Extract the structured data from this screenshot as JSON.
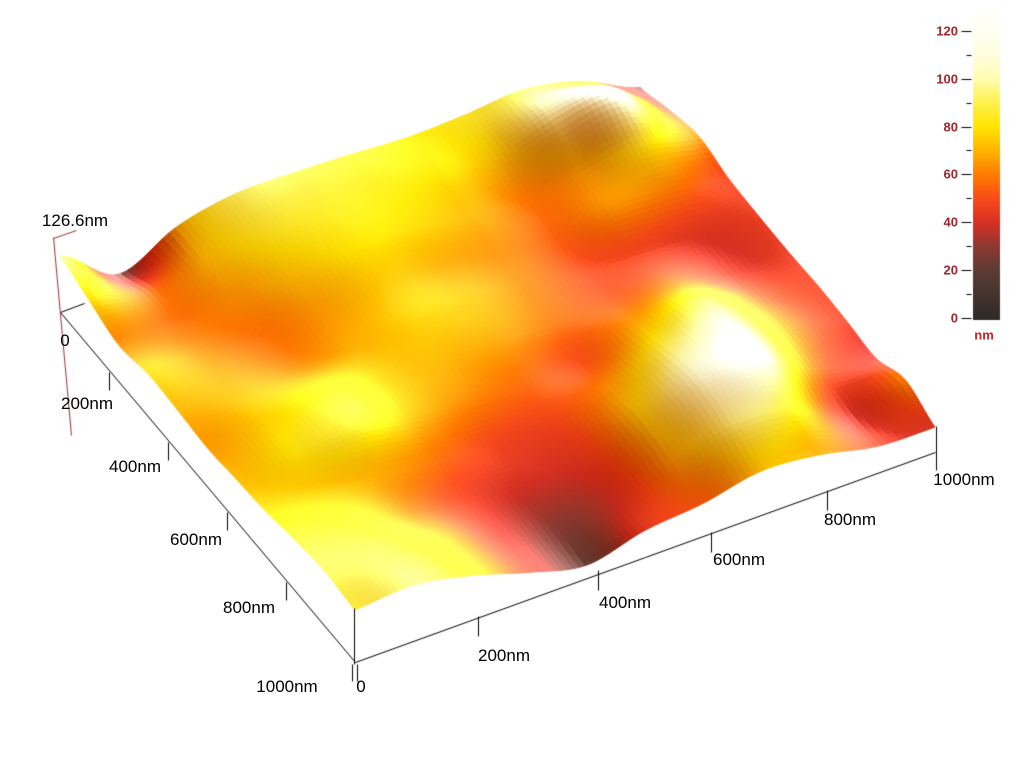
{
  "figure": {
    "background": "#ffffff",
    "z_axis": {
      "max_label": "126.6nm",
      "line_color": "#993333"
    },
    "y_axis": {
      "tick_labels": [
        "0",
        "200nm",
        "400nm",
        "600nm",
        "800nm",
        "1000nm"
      ]
    },
    "x_axis": {
      "tick_labels": [
        "0",
        "200nm",
        "400nm",
        "600nm",
        "800nm",
        "1000nm"
      ]
    },
    "colorbar": {
      "tick_labels": [
        "120",
        "100",
        "80",
        "60",
        "40",
        "20",
        "0"
      ],
      "unit_label": "nm",
      "tick_label_color": "#a0252d",
      "unit_label_color": "#cc1f1f"
    }
  },
  "chart_data": {
    "type": "heatmap",
    "title": "",
    "xlabel": "",
    "ylabel": "",
    "x_range_nm": [
      0,
      1000
    ],
    "y_range_nm": [
      0,
      1000
    ],
    "z_range_nm": [
      0,
      126.6
    ],
    "x_tick_values_nm": [
      0,
      200,
      400,
      600,
      800,
      1000
    ],
    "y_tick_values_nm": [
      0,
      200,
      400,
      600,
      800,
      1000
    ],
    "colorbar_tick_values_nm": [
      0,
      20,
      40,
      60,
      80,
      100,
      120
    ],
    "colorbar_unit": "nm",
    "grid_step_nm": 100,
    "z_values_nm": [
      [
        95,
        28,
        72,
        92,
        92,
        88,
        82,
        85,
        92,
        70,
        25
      ],
      [
        78,
        55,
        72,
        84,
        86,
        83,
        80,
        78,
        105,
        112,
        45
      ],
      [
        62,
        58,
        64,
        74,
        80,
        77,
        70,
        60,
        70,
        85,
        60
      ],
      [
        72,
        62,
        58,
        66,
        73,
        68,
        62,
        55,
        64,
        60,
        48
      ],
      [
        70,
        68,
        63,
        69,
        74,
        70,
        60,
        50,
        47,
        42,
        45
      ],
      [
        66,
        76,
        82,
        73,
        70,
        66,
        57,
        54,
        58,
        42,
        44
      ],
      [
        71,
        81,
        86,
        71,
        62,
        56,
        52,
        74,
        88,
        54,
        46
      ],
      [
        76,
        73,
        68,
        57,
        48,
        50,
        68,
        96,
        102,
        62,
        44
      ],
      [
        86,
        79,
        60,
        45,
        40,
        45,
        80,
        110,
        107,
        56,
        40
      ],
      [
        92,
        88,
        70,
        42,
        30,
        40,
        72,
        96,
        86,
        40,
        62
      ],
      [
        88,
        94,
        75,
        45,
        22,
        45,
        55,
        74,
        66,
        45,
        42
      ]
    ],
    "colormap_stops": [
      [
        0,
        "#2e2a28"
      ],
      [
        20,
        "#5c3c34"
      ],
      [
        30,
        "#8a3a32"
      ],
      [
        40,
        "#d53024"
      ],
      [
        50,
        "#fa4a1c"
      ],
      [
        60,
        "#ff7a00"
      ],
      [
        70,
        "#ffb300"
      ],
      [
        80,
        "#ffe400"
      ],
      [
        90,
        "#fff24a"
      ],
      [
        100,
        "#fffdae"
      ],
      [
        110,
        "#fffede"
      ],
      [
        120,
        "#fffff2"
      ],
      [
        132,
        "#ffffff"
      ]
    ]
  }
}
